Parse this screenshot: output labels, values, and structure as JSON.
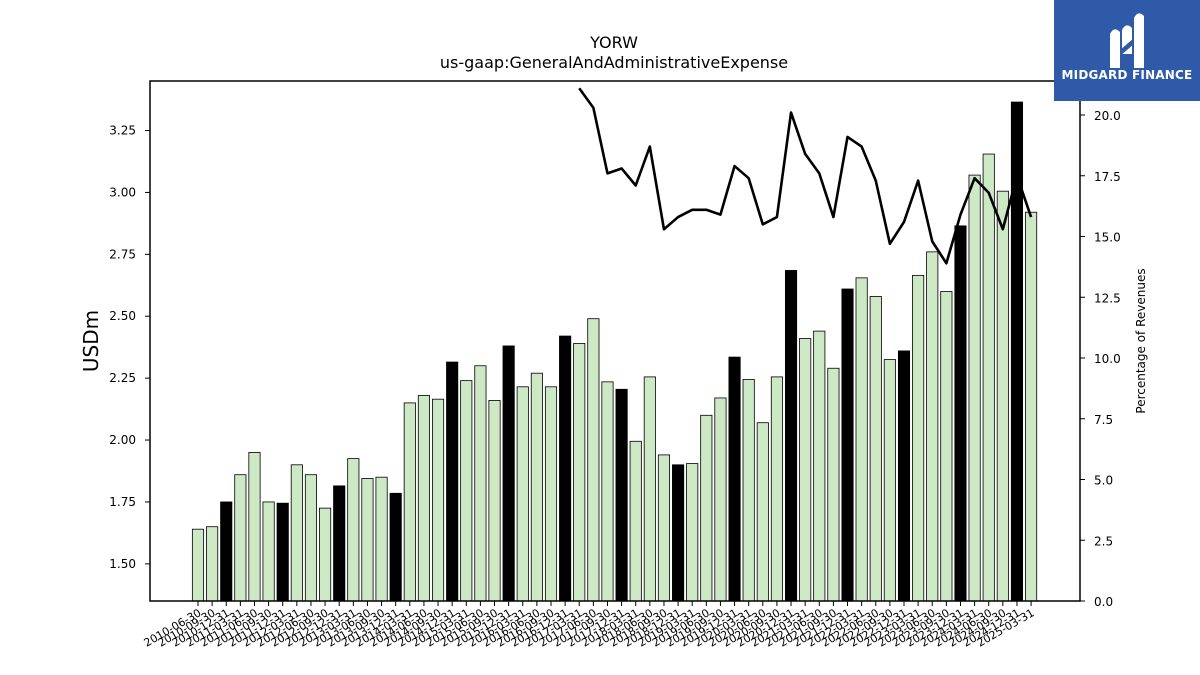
{
  "chart_data": {
    "type": "bar",
    "title": "YORW",
    "subtitle": "us-gaap:GeneralAndAdministrativeExpense",
    "ylabel": "USDm",
    "y2label": "Percentage of Revenues",
    "ylim": [
      1.35,
      3.45
    ],
    "y2lim": [
      0,
      21.4
    ],
    "yticks": [
      1.5,
      1.75,
      2.0,
      2.25,
      2.5,
      2.75,
      3.0,
      3.25
    ],
    "y2ticks": [
      0.0,
      2.5,
      5.0,
      7.5,
      10.0,
      12.5,
      15.0,
      17.5,
      20.0
    ],
    "categories": [
      "2010-06-30",
      "2010-09-30",
      "2010-12-31",
      "2011-03-31",
      "2011-06-30",
      "2011-09-30",
      "2011-12-31",
      "2012-03-31",
      "2012-06-30",
      "2012-09-30",
      "2012-12-31",
      "2013-03-31",
      "2013-06-30",
      "2013-09-30",
      "2013-12-31",
      "2014-03-31",
      "2014-06-30",
      "2014-09-30",
      "2014-12-31",
      "2015-03-31",
      "2015-06-30",
      "2015-09-30",
      "2015-12-31",
      "2016-03-31",
      "2016-06-30",
      "2016-09-30",
      "2016-12-31",
      "2017-03-31",
      "2017-06-30",
      "2017-09-30",
      "2017-12-31",
      "2018-03-31",
      "2018-06-30",
      "2018-09-30",
      "2018-12-31",
      "2019-03-31",
      "2019-06-30",
      "2019-09-30",
      "2019-12-31",
      "2020-03-31",
      "2020-06-30",
      "2020-09-30",
      "2020-12-31",
      "2021-03-31",
      "2021-06-30",
      "2021-09-30",
      "2021-12-31",
      "2022-03-31",
      "2022-06-30",
      "2022-09-30",
      "2022-12-31",
      "2023-03-31",
      "2023-06-30",
      "2023-09-30",
      "2023-12-31",
      "2024-03-31",
      "2024-06-30",
      "2024-09-30",
      "2024-12-31",
      "2025-03-31"
    ],
    "series": [
      {
        "type": "bar",
        "values": [
          1.64,
          1.65,
          1.75,
          1.86,
          1.95,
          1.75,
          1.745,
          1.9,
          1.86,
          1.725,
          1.815,
          1.925,
          1.845,
          1.85,
          1.785,
          2.15,
          2.18,
          2.165,
          2.315,
          2.24,
          2.3,
          2.16,
          2.38,
          2.215,
          2.27,
          2.215,
          2.42,
          2.39,
          2.49,
          2.235,
          2.205,
          1.995,
          2.255,
          1.94,
          1.9,
          1.905,
          2.1,
          2.17,
          2.335,
          2.245,
          2.07,
          2.255,
          2.685,
          2.41,
          2.44,
          2.29,
          2.61,
          2.655,
          2.58,
          2.325,
          2.36,
          2.665,
          2.76,
          2.6,
          2.865,
          3.07,
          3.155,
          3.005,
          3.365,
          2.92
        ],
        "year_end": [
          false,
          false,
          true,
          false,
          false,
          false,
          true,
          false,
          false,
          false,
          true,
          false,
          false,
          false,
          true,
          false,
          false,
          false,
          true,
          false,
          false,
          false,
          true,
          false,
          false,
          false,
          true,
          false,
          false,
          false,
          true,
          false,
          false,
          false,
          true,
          false,
          false,
          false,
          true,
          false,
          false,
          false,
          true,
          false,
          false,
          false,
          true,
          false,
          false,
          false,
          true,
          false,
          false,
          false,
          true,
          false,
          false,
          false,
          true,
          false
        ],
        "colors": {
          "quarter": "#cce8c4",
          "year_end": "#000000"
        }
      },
      {
        "type": "line",
        "axis": "right",
        "color": "#000000",
        "values": [
          null,
          null,
          null,
          null,
          null,
          null,
          null,
          null,
          null,
          null,
          null,
          null,
          null,
          null,
          null,
          null,
          null,
          null,
          null,
          null,
          null,
          null,
          null,
          null,
          null,
          null,
          null,
          21.1,
          20.3,
          17.6,
          17.8,
          17.1,
          18.7,
          15.3,
          15.8,
          16.1,
          16.1,
          15.9,
          17.9,
          17.4,
          15.5,
          15.8,
          20.1,
          18.4,
          17.6,
          15.8,
          19.1,
          18.7,
          17.3,
          14.7,
          15.6,
          17.3,
          14.8,
          13.9,
          15.9,
          17.4,
          16.8,
          15.3,
          17.5,
          15.8
        ]
      }
    ],
    "grid": false,
    "legend": "none"
  },
  "logo": {
    "text": "MIDGARD FINANCE",
    "bg": "#2f5aa8"
  }
}
